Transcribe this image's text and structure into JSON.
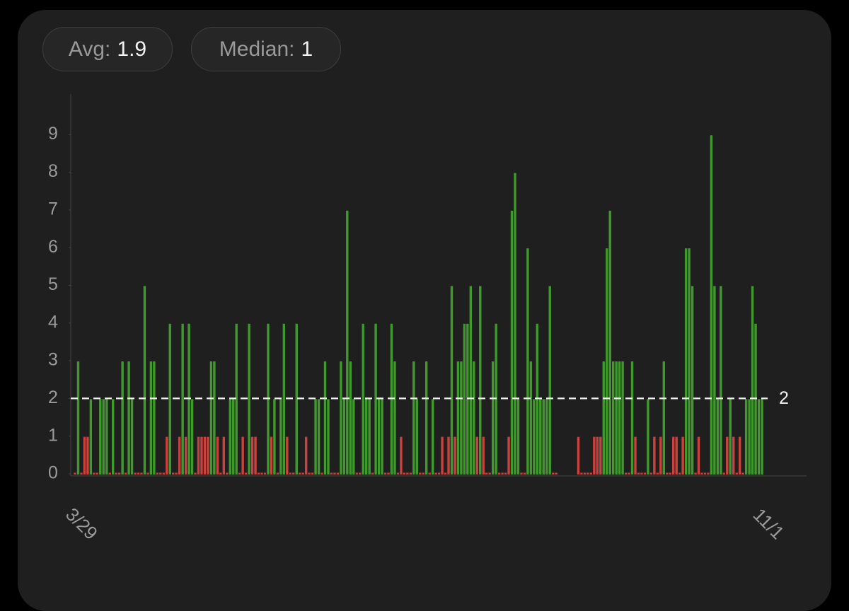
{
  "stats": [
    {
      "label": "Avg:",
      "value": 1.9
    },
    {
      "label": "Median:",
      "value": 1
    }
  ],
  "chart_data": {
    "type": "bar",
    "categories": [
      "3/29",
      null,
      null,
      null,
      null,
      null,
      null,
      null,
      null,
      null,
      null,
      null,
      null,
      null,
      null,
      null,
      null,
      null,
      null,
      null,
      null,
      null,
      null,
      null,
      null,
      null,
      null,
      null,
      null,
      null,
      null,
      null,
      null,
      null,
      null,
      null,
      null,
      null,
      null,
      null,
      null,
      null,
      null,
      null,
      null,
      null,
      null,
      null,
      null,
      null,
      null,
      null,
      null,
      null,
      null,
      null,
      null,
      null,
      null,
      null,
      null,
      null,
      null,
      null,
      null,
      null,
      null,
      null,
      null,
      null,
      null,
      null,
      null,
      null,
      null,
      null,
      null,
      null,
      null,
      null,
      null,
      null,
      null,
      null,
      null,
      null,
      null,
      null,
      null,
      null,
      null,
      null,
      null,
      null,
      null,
      null,
      null,
      null,
      null,
      null,
      null,
      null,
      null,
      null,
      null,
      null,
      null,
      null,
      null,
      null,
      null,
      null,
      null,
      null,
      null,
      null,
      null,
      null,
      null,
      null,
      null,
      null,
      null,
      null,
      null,
      null,
      null,
      null,
      null,
      null,
      null,
      null,
      null,
      null,
      null,
      null,
      null,
      null,
      null,
      null,
      null,
      null,
      null,
      null,
      null,
      null,
      null,
      null,
      null,
      null,
      null,
      null,
      null,
      null,
      null,
      null,
      null,
      null,
      null,
      null,
      null,
      null,
      null,
      null,
      null,
      null,
      null,
      null,
      null,
      null,
      null,
      null,
      null,
      null,
      null,
      null,
      null,
      null,
      null,
      null,
      null,
      null,
      null,
      null,
      null,
      null,
      null,
      null,
      null,
      null,
      null,
      null,
      null,
      null,
      null,
      null,
      null,
      null,
      null,
      null,
      null,
      null,
      null,
      null,
      null,
      null,
      null,
      null,
      null,
      null,
      null,
      null,
      null,
      null,
      null,
      null,
      null,
      "11/1"
    ],
    "values": [
      0,
      3,
      0,
      1,
      1,
      2,
      0,
      0,
      2,
      2,
      2,
      0,
      2,
      0,
      0,
      3,
      0,
      3,
      2,
      0,
      0,
      0,
      5,
      0,
      3,
      3,
      0,
      0,
      0,
      1,
      4,
      0,
      0,
      1,
      4,
      1,
      4,
      2,
      0,
      1,
      1,
      1,
      1,
      3,
      3,
      1,
      0,
      1,
      0,
      2,
      2,
      4,
      0,
      1,
      0,
      4,
      1,
      1,
      0,
      0,
      0,
      4,
      1,
      2,
      0,
      2,
      4,
      1,
      0,
      0,
      4,
      0,
      0,
      1,
      0,
      0,
      2,
      2,
      0,
      3,
      2,
      0,
      0,
      0,
      3,
      2,
      7,
      3,
      2,
      0,
      0,
      4,
      2,
      2,
      0,
      4,
      2,
      2,
      0,
      0,
      4,
      3,
      0,
      1,
      0,
      0,
      0,
      3,
      2,
      0,
      0,
      3,
      0,
      2,
      0,
      0,
      1,
      0,
      1,
      5,
      1,
      3,
      3,
      4,
      4,
      5,
      3,
      1,
      5,
      1,
      0,
      0,
      3,
      4,
      0,
      0,
      0,
      1,
      7,
      8,
      2,
      0,
      0,
      6,
      3,
      2,
      4,
      2,
      2,
      2,
      5,
      0,
      0,
      null,
      null,
      null,
      null,
      null,
      null,
      1,
      0,
      0,
      0,
      0,
      1,
      1,
      1,
      3,
      6,
      7,
      3,
      3,
      3,
      3,
      0,
      0,
      3,
      1,
      0,
      0,
      0,
      2,
      0,
      1,
      0,
      1,
      3,
      0,
      0,
      1,
      1,
      0,
      1,
      6,
      6,
      5,
      0,
      1,
      0,
      0,
      0,
      9,
      5,
      2,
      5,
      0,
      1,
      2,
      1,
      0,
      1,
      0,
      2,
      2,
      5,
      4,
      2,
      2
    ],
    "colors": {
      "above": "#3f9a2b",
      "below": "#c9423e"
    },
    "goal_line": 2,
    "ylim": [
      0,
      10
    ],
    "yticks": [
      0,
      1,
      2,
      3,
      4,
      5,
      6,
      7,
      8,
      9
    ]
  }
}
